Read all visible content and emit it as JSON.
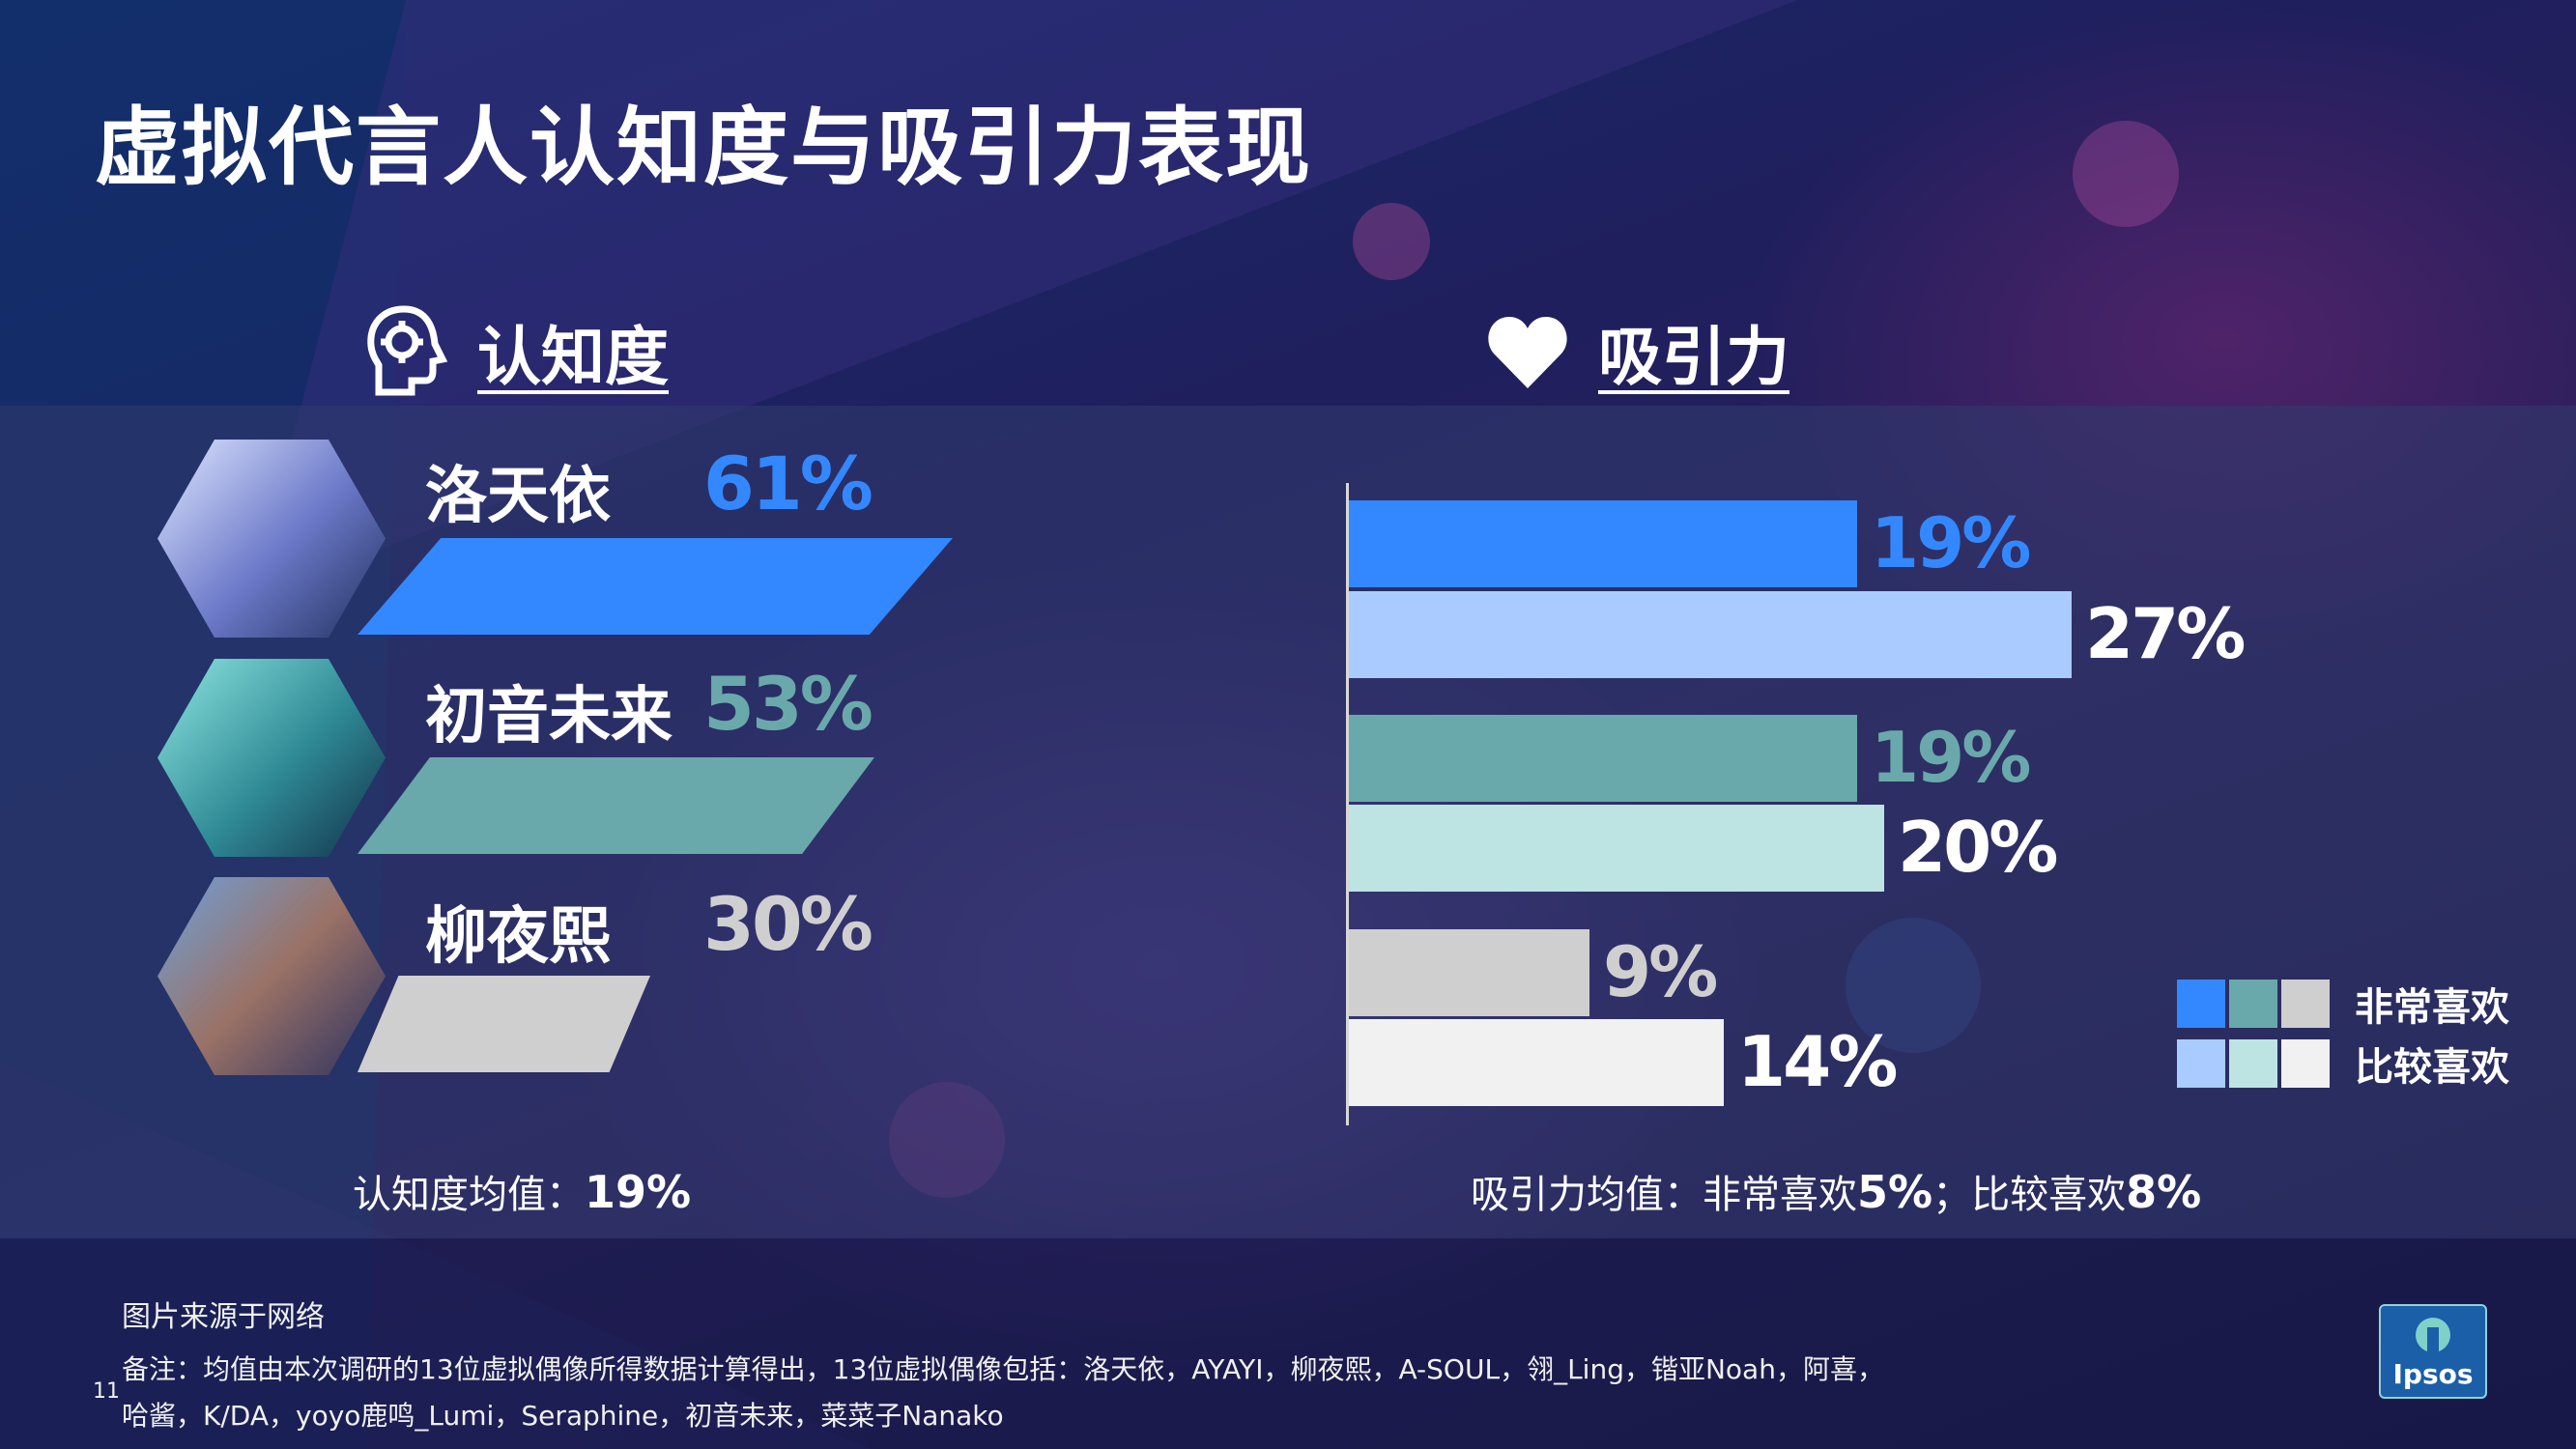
{
  "title": "虚拟代言人认知度与吸引力表现",
  "awareness": {
    "heading": "认知度",
    "icon": "head-gear-icon",
    "items": [
      {
        "name": "洛天依",
        "value_label": "61%",
        "color": "#3388ff"
      },
      {
        "name": "初音未来",
        "value_label": "53%",
        "color": "#6aa9ab"
      },
      {
        "name": "柳夜熙",
        "value_label": "30%",
        "color": "#cfcfcf"
      }
    ],
    "avg_label": "认知度均值：",
    "avg_value": "19%"
  },
  "attraction": {
    "heading": "吸引力",
    "icon": "heart-icon",
    "avg_label": "吸引力均值：非常喜欢",
    "avg_very": "5%",
    "avg_sep": "；比较喜欢",
    "avg_quite": "8%",
    "legend": [
      "非常喜欢",
      "比较喜欢"
    ]
  },
  "chart_data": [
    {
      "type": "bar",
      "orientation": "horizontal",
      "title": "认知度",
      "categories": [
        "洛天依",
        "初音未来",
        "柳夜熙"
      ],
      "values": [
        61,
        53,
        30
      ],
      "colors": [
        "#3388ff",
        "#6aa9ab",
        "#cfcfcf"
      ]
    },
    {
      "type": "bar",
      "orientation": "horizontal",
      "title": "吸引力",
      "categories": [
        "洛天依",
        "初音未来",
        "柳夜熙"
      ],
      "series": [
        {
          "name": "非常喜欢",
          "values": [
            19,
            19,
            9
          ],
          "colors": [
            "#3388ff",
            "#6aa9ab",
            "#cfcfcf"
          ]
        },
        {
          "name": "比较喜欢",
          "values": [
            27,
            20,
            14
          ],
          "colors": [
            "#a9cbff",
            "#bde3e2",
            "#f1f1f1"
          ]
        }
      ],
      "value_labels": [
        [
          "19%",
          "27%"
        ],
        [
          "19%",
          "20%"
        ],
        [
          "9%",
          "14%"
        ]
      ],
      "legend_position": "right"
    }
  ],
  "footer": {
    "source": "图片来源于网络",
    "note_line1": "备注：均值由本次调研的13位虚拟偶像所得数据计算得出，13位虚拟偶像包括：洛天依，AYAYI，柳夜熙，A-SOUL，翎_Ling，锴亚Noah，阿喜，",
    "note_line2": "哈酱，K/DA，yoyo鹿鸣_Lumi，Seraphine，初音未来，菜菜子Nanako",
    "page_number": "11",
    "logo_text": "Ipsos"
  }
}
